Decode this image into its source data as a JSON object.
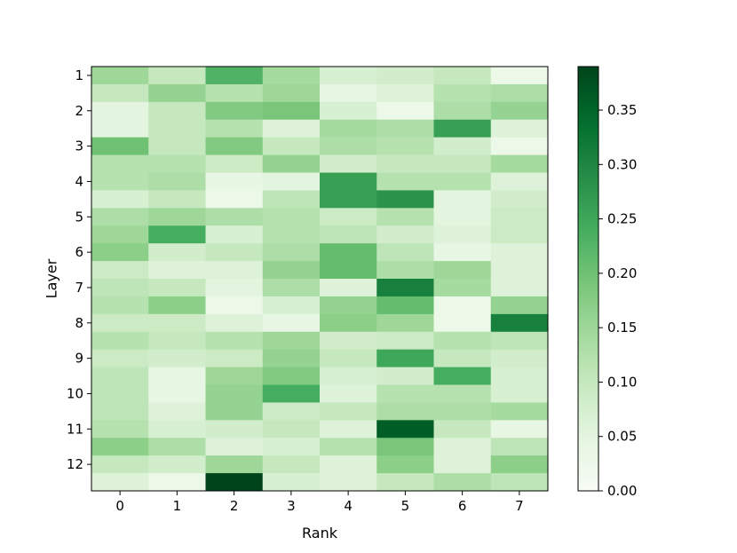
{
  "chart_data": {
    "type": "heatmap",
    "title": "",
    "xlabel": "Rank",
    "ylabel": "Layer",
    "x_categories": [
      "0",
      "1",
      "2",
      "3",
      "4",
      "5",
      "6",
      "7"
    ],
    "row_count": 24,
    "y_tick_labels": [
      "1",
      "2",
      "3",
      "4",
      "5",
      "6",
      "7",
      "8",
      "9",
      "10",
      "11",
      "12"
    ],
    "colorbar": {
      "colormap": "Greens",
      "vmin": 0.0,
      "vmax": 0.39,
      "ticks": [
        0.0,
        0.05,
        0.1,
        0.15,
        0.2,
        0.25,
        0.3,
        0.35
      ],
      "tick_labels": [
        "0.00",
        "0.05",
        "0.10",
        "0.15",
        "0.20",
        "0.25",
        "0.30",
        "0.35"
      ]
    },
    "values": [
      [
        0.15,
        0.1,
        0.23,
        0.14,
        0.07,
        0.08,
        0.1,
        0.03
      ],
      [
        0.1,
        0.16,
        0.12,
        0.15,
        0.04,
        0.06,
        0.12,
        0.13
      ],
      [
        0.05,
        0.1,
        0.18,
        0.19,
        0.07,
        0.03,
        0.13,
        0.16
      ],
      [
        0.05,
        0.1,
        0.12,
        0.06,
        0.14,
        0.13,
        0.26,
        0.06
      ],
      [
        0.2,
        0.1,
        0.18,
        0.1,
        0.13,
        0.12,
        0.08,
        0.03
      ],
      [
        0.12,
        0.12,
        0.09,
        0.16,
        0.08,
        0.1,
        0.1,
        0.14
      ],
      [
        0.12,
        0.13,
        0.04,
        0.05,
        0.26,
        0.12,
        0.12,
        0.06
      ],
      [
        0.07,
        0.1,
        0.03,
        0.11,
        0.26,
        0.28,
        0.05,
        0.08
      ],
      [
        0.13,
        0.15,
        0.13,
        0.12,
        0.09,
        0.12,
        0.05,
        0.09
      ],
      [
        0.15,
        0.24,
        0.07,
        0.12,
        0.11,
        0.08,
        0.06,
        0.09
      ],
      [
        0.17,
        0.08,
        0.1,
        0.13,
        0.21,
        0.11,
        0.04,
        0.06
      ],
      [
        0.09,
        0.06,
        0.06,
        0.16,
        0.21,
        0.13,
        0.15,
        0.06
      ],
      [
        0.11,
        0.1,
        0.05,
        0.13,
        0.06,
        0.31,
        0.14,
        0.06
      ],
      [
        0.12,
        0.17,
        0.03,
        0.07,
        0.16,
        0.21,
        0.03,
        0.16
      ],
      [
        0.09,
        0.09,
        0.06,
        0.04,
        0.17,
        0.15,
        0.03,
        0.31
      ],
      [
        0.12,
        0.1,
        0.12,
        0.15,
        0.08,
        0.09,
        0.12,
        0.11
      ],
      [
        0.09,
        0.08,
        0.09,
        0.16,
        0.1,
        0.25,
        0.1,
        0.08
      ],
      [
        0.11,
        0.04,
        0.15,
        0.18,
        0.07,
        0.08,
        0.24,
        0.07
      ],
      [
        0.11,
        0.04,
        0.16,
        0.24,
        0.06,
        0.12,
        0.12,
        0.07
      ],
      [
        0.11,
        0.06,
        0.16,
        0.09,
        0.1,
        0.13,
        0.13,
        0.14
      ],
      [
        0.12,
        0.07,
        0.08,
        0.1,
        0.06,
        0.36,
        0.1,
        0.04
      ],
      [
        0.17,
        0.13,
        0.06,
        0.07,
        0.12,
        0.19,
        0.06,
        0.11
      ],
      [
        0.1,
        0.08,
        0.15,
        0.1,
        0.06,
        0.17,
        0.06,
        0.17
      ],
      [
        0.06,
        0.03,
        0.39,
        0.07,
        0.06,
        0.1,
        0.13,
        0.11
      ]
    ]
  }
}
